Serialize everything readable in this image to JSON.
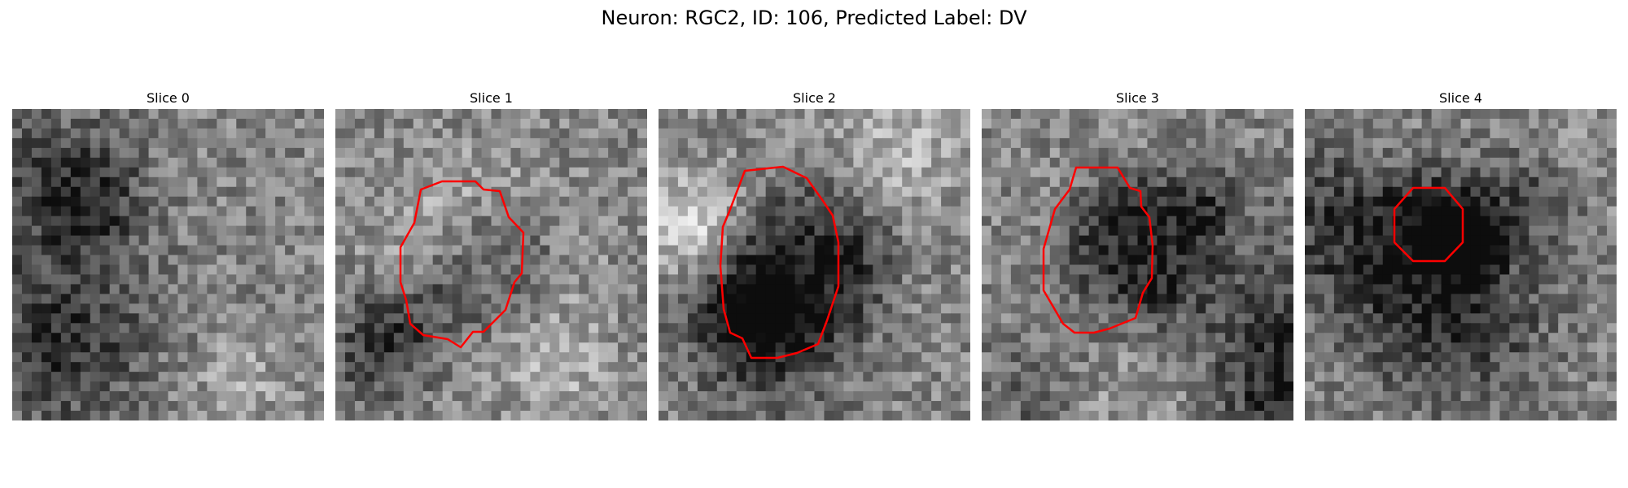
{
  "figure": {
    "title": "Neuron: RGC2, ID: 106, Predicted Label: DV"
  },
  "colors": {
    "contour": "#ff0000",
    "background": "#ffffff"
  },
  "panels": [
    {
      "title": "Slice 0",
      "has_contour": false,
      "seed": 11,
      "dark_blob": null
    },
    {
      "title": "Slice 1",
      "has_contour": true,
      "seed": 23,
      "dark_blob": [
        0.48,
        0.5,
        0.22
      ]
    },
    {
      "title": "Slice 2",
      "has_contour": true,
      "seed": 37,
      "dark_blob": [
        0.48,
        0.48,
        0.26
      ]
    },
    {
      "title": "Slice 3",
      "has_contour": true,
      "seed": 41,
      "dark_blob": [
        0.48,
        0.42,
        0.24
      ]
    },
    {
      "title": "Slice 4",
      "has_contour": true,
      "seed": 53,
      "dark_blob": [
        0.5,
        0.4,
        0.14
      ]
    }
  ]
}
